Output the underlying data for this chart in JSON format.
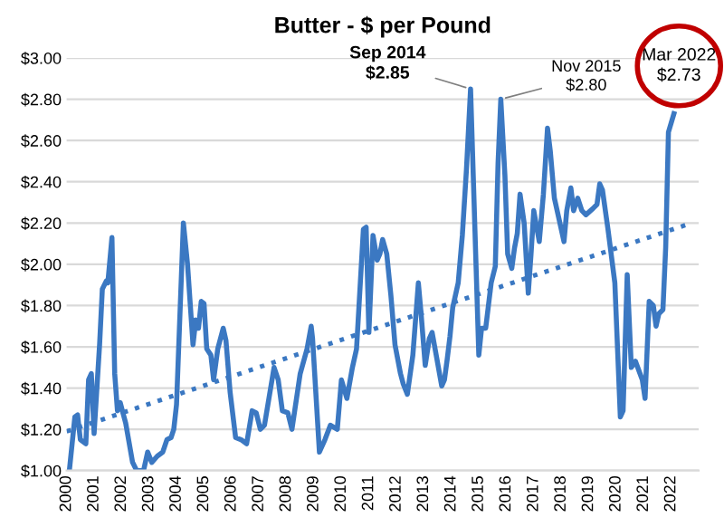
{
  "chart_data": {
    "type": "line",
    "title": "Butter - $ per Pound",
    "series": [
      {
        "color": "#3b78c2",
        "line_style": "solid",
        "x": [
          2000.1,
          2000.3,
          2000.4,
          2000.5,
          2000.7,
          2000.8,
          2000.9,
          2001.0,
          2001.2,
          2001.3,
          2001.45,
          2001.5,
          2001.65,
          2001.75,
          2001.85,
          2001.95,
          2002.05,
          2002.15,
          2002.4,
          2002.55,
          2002.8,
          2002.95,
          2003.1,
          2003.3,
          2003.5,
          2003.65,
          2003.8,
          2003.9,
          2004.0,
          2004.25,
          2004.4,
          2004.6,
          2004.7,
          2004.8,
          2004.9,
          2005.0,
          2005.1,
          2005.25,
          2005.35,
          2005.5,
          2005.7,
          2005.8,
          2005.95,
          2006.15,
          2006.35,
          2006.55,
          2006.75,
          2006.9,
          2007.05,
          2007.2,
          2007.55,
          2007.7,
          2007.85,
          2008.05,
          2008.2,
          2008.5,
          2008.75,
          2008.9,
          2008.95,
          2009.2,
          2009.4,
          2009.6,
          2009.85,
          2010.0,
          2010.2,
          2010.4,
          2010.55,
          2010.8,
          2010.9,
          2011.0,
          2011.15,
          2011.3,
          2011.4,
          2011.5,
          2011.65,
          2011.8,
          2011.95,
          2012.15,
          2012.25,
          2012.4,
          2012.6,
          2012.8,
          2012.9,
          2013.05,
          2013.2,
          2013.3,
          2013.45,
          2013.65,
          2013.75,
          2013.85,
          2013.95,
          2014.05,
          2014.25,
          2014.4,
          2014.55,
          2014.7,
          2014.9,
          2015.0,
          2015.1,
          2015.25,
          2015.45,
          2015.6,
          2015.7,
          2015.8,
          2015.95,
          2016.05,
          2016.2,
          2016.3,
          2016.4,
          2016.5,
          2016.65,
          2016.8,
          2016.9,
          2017.0,
          2017.2,
          2017.35,
          2017.5,
          2017.6,
          2017.75,
          2017.9,
          2018.1,
          2018.2,
          2018.35,
          2018.45,
          2018.6,
          2018.75,
          2018.9,
          2019.15,
          2019.3,
          2019.4,
          2019.5,
          2019.7,
          2019.95,
          2020.15,
          2020.25,
          2020.4,
          2020.55,
          2020.7,
          2020.95,
          2021.05,
          2021.2,
          2021.35,
          2021.45,
          2021.55,
          2021.7,
          2021.8,
          2021.9,
          2022.1
        ],
        "values": [
          1.0,
          1.26,
          1.27,
          1.15,
          1.13,
          1.44,
          1.47,
          1.18,
          1.61,
          1.88,
          1.92,
          1.91,
          2.13,
          1.47,
          1.29,
          1.33,
          1.28,
          1.23,
          1.04,
          1.0,
          1.0,
          1.09,
          1.04,
          1.07,
          1.09,
          1.15,
          1.16,
          1.2,
          1.32,
          2.2,
          2.0,
          1.61,
          1.73,
          1.69,
          1.82,
          1.81,
          1.59,
          1.56,
          1.44,
          1.59,
          1.69,
          1.63,
          1.38,
          1.16,
          1.15,
          1.13,
          1.29,
          1.28,
          1.2,
          1.22,
          1.5,
          1.44,
          1.29,
          1.28,
          1.2,
          1.47,
          1.59,
          1.7,
          1.64,
          1.09,
          1.15,
          1.22,
          1.2,
          1.44,
          1.35,
          1.5,
          1.59,
          2.17,
          2.18,
          1.67,
          2.14,
          2.02,
          2.05,
          2.12,
          2.05,
          1.85,
          1.61,
          1.47,
          1.42,
          1.37,
          1.56,
          1.91,
          1.76,
          1.51,
          1.64,
          1.67,
          1.56,
          1.41,
          1.44,
          1.54,
          1.65,
          1.79,
          1.91,
          2.14,
          2.46,
          2.85,
          1.99,
          1.56,
          1.69,
          1.69,
          1.91,
          1.99,
          2.49,
          2.8,
          2.43,
          2.05,
          1.98,
          2.08,
          2.15,
          2.34,
          2.2,
          1.86,
          2.05,
          2.26,
          2.11,
          2.34,
          2.66,
          2.55,
          2.32,
          2.23,
          2.11,
          2.26,
          2.37,
          2.26,
          2.32,
          2.26,
          2.24,
          2.27,
          2.29,
          2.39,
          2.36,
          2.17,
          1.91,
          1.26,
          1.29,
          1.95,
          1.5,
          1.53,
          1.44,
          1.35,
          1.82,
          1.8,
          1.7,
          1.76,
          1.78,
          2.08,
          2.64,
          2.73
        ]
      },
      {
        "color": "#3b78c2",
        "line_style": "dotted",
        "x": [
          2000,
          2022.75
        ],
        "values": [
          1.19,
          2.2
        ]
      }
    ],
    "xlim": [
      2000,
      2023
    ],
    "xticks": [
      2000,
      2001,
      2002,
      2003,
      2004,
      2005,
      2006,
      2007,
      2008,
      2009,
      2010,
      2011,
      2012,
      2013,
      2014,
      2015,
      2016,
      2017,
      2018,
      2019,
      2020,
      2021,
      2022
    ],
    "ylim": [
      1.0,
      3.0
    ],
    "yticks": [
      {
        "value": 1.0,
        "label": "$1.00"
      },
      {
        "value": 1.2,
        "label": "$1.20"
      },
      {
        "value": 1.4,
        "label": "$1.40"
      },
      {
        "value": 1.6,
        "label": "$1.60"
      },
      {
        "value": 1.8,
        "label": "$1.80"
      },
      {
        "value": 2.0,
        "label": "$2.00"
      },
      {
        "value": 2.2,
        "label": "$2.20"
      },
      {
        "value": 2.4,
        "label": "$2.40"
      },
      {
        "value": 2.6,
        "label": "$2.60"
      },
      {
        "value": 2.8,
        "label": "$2.80"
      },
      {
        "value": 3.0,
        "label": "$3.00"
      }
    ],
    "grid": "y",
    "legend": false,
    "marker": "none",
    "annotations": [
      {
        "text": "Sep 2014\n$2.85",
        "x": 2014.7,
        "y": 2.85
      },
      {
        "text": "Nov 2015\n$2.80",
        "x": 2015.8,
        "y": 2.8
      },
      {
        "text": "Mar 2022\n$2.73",
        "x": 2022.1,
        "y": 2.73
      }
    ]
  }
}
